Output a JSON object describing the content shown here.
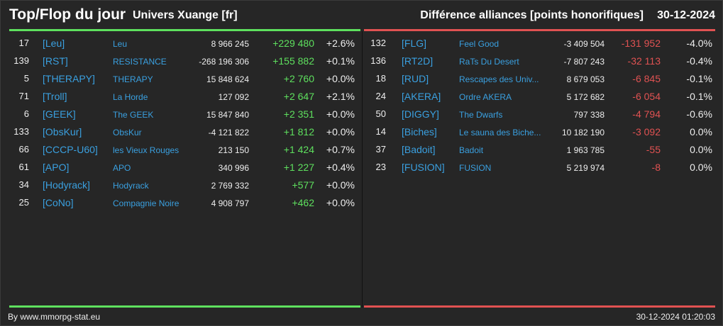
{
  "header": {
    "title": "Top/Flop du jour",
    "universe": "Univers Xuange [fr]",
    "category": "Différence alliances [points honorifiques]",
    "date": "30-12-2024"
  },
  "colors": {
    "top": "#5ee05e",
    "flop": "#e05252",
    "link": "#3aa0e0"
  },
  "top": [
    {
      "rank": "17",
      "tag": "[Leu]",
      "name": "Leu",
      "points": "8 966 245",
      "change": "+229 480",
      "pct": "+2.6%"
    },
    {
      "rank": "139",
      "tag": "[RST]",
      "name": "RESISTANCE",
      "points": "-268 196 306",
      "change": "+155 882",
      "pct": "+0.1%"
    },
    {
      "rank": "5",
      "tag": "[THERAPY]",
      "name": "THERAPY",
      "points": "15 848 624",
      "change": "+2 760",
      "pct": "+0.0%"
    },
    {
      "rank": "71",
      "tag": "[Troll]",
      "name": "La Horde",
      "points": "127 092",
      "change": "+2 647",
      "pct": "+2.1%"
    },
    {
      "rank": "6",
      "tag": "[GEEK]",
      "name": "The GEEK",
      "points": "15 847 840",
      "change": "+2 351",
      "pct": "+0.0%"
    },
    {
      "rank": "133",
      "tag": "[ObsKur]",
      "name": "ObsKur",
      "points": "-4 121 822",
      "change": "+1 812",
      "pct": "+0.0%"
    },
    {
      "rank": "66",
      "tag": "[CCCP-U60]",
      "name": "les Vieux Rouges",
      "points": "213 150",
      "change": "+1 424",
      "pct": "+0.7%"
    },
    {
      "rank": "61",
      "tag": "[APO]",
      "name": "APO",
      "points": "340 996",
      "change": "+1 227",
      "pct": "+0.4%"
    },
    {
      "rank": "34",
      "tag": "[Hodyrack]",
      "name": "Hodyrack",
      "points": "2 769 332",
      "change": "+577",
      "pct": "+0.0%"
    },
    {
      "rank": "25",
      "tag": "[CoNo]",
      "name": "Compagnie Noire",
      "points": "4 908 797",
      "change": "+462",
      "pct": "+0.0%"
    }
  ],
  "flop": [
    {
      "rank": "132",
      "tag": "[FLG]",
      "name": "Feel Good",
      "points": "-3 409 504",
      "change": "-131 952",
      "pct": "-4.0%"
    },
    {
      "rank": "136",
      "tag": "[RT2D]",
      "name": "RaTs Du Desert",
      "points": "-7 807 243",
      "change": "-32 113",
      "pct": "-0.4%"
    },
    {
      "rank": "18",
      "tag": "[RUD]",
      "name": "Rescapes des Univ...",
      "points": "8 679 053",
      "change": "-6 845",
      "pct": "-0.1%"
    },
    {
      "rank": "24",
      "tag": "[AKERA]",
      "name": "Ordre AKERA",
      "points": "5 172 682",
      "change": "-6 054",
      "pct": "-0.1%"
    },
    {
      "rank": "50",
      "tag": "[DIGGY]",
      "name": "The Dwarfs",
      "points": "797 338",
      "change": "-4 794",
      "pct": "-0.6%"
    },
    {
      "rank": "14",
      "tag": "[Biches]",
      "name": "Le sauna des Biche...",
      "points": "10 182 190",
      "change": "-3 092",
      "pct": "0.0%"
    },
    {
      "rank": "37",
      "tag": "[Badoit]",
      "name": "Badoit",
      "points": "1 963 785",
      "change": "-55",
      "pct": "0.0%"
    },
    {
      "rank": "23",
      "tag": "[FUSION]",
      "name": "FUSION",
      "points": "5 219 974",
      "change": "-8",
      "pct": "0.0%"
    }
  ],
  "footer": {
    "credit": "By www.mmorpg-stat.eu",
    "timestamp": "30-12-2024 01:20:03"
  }
}
